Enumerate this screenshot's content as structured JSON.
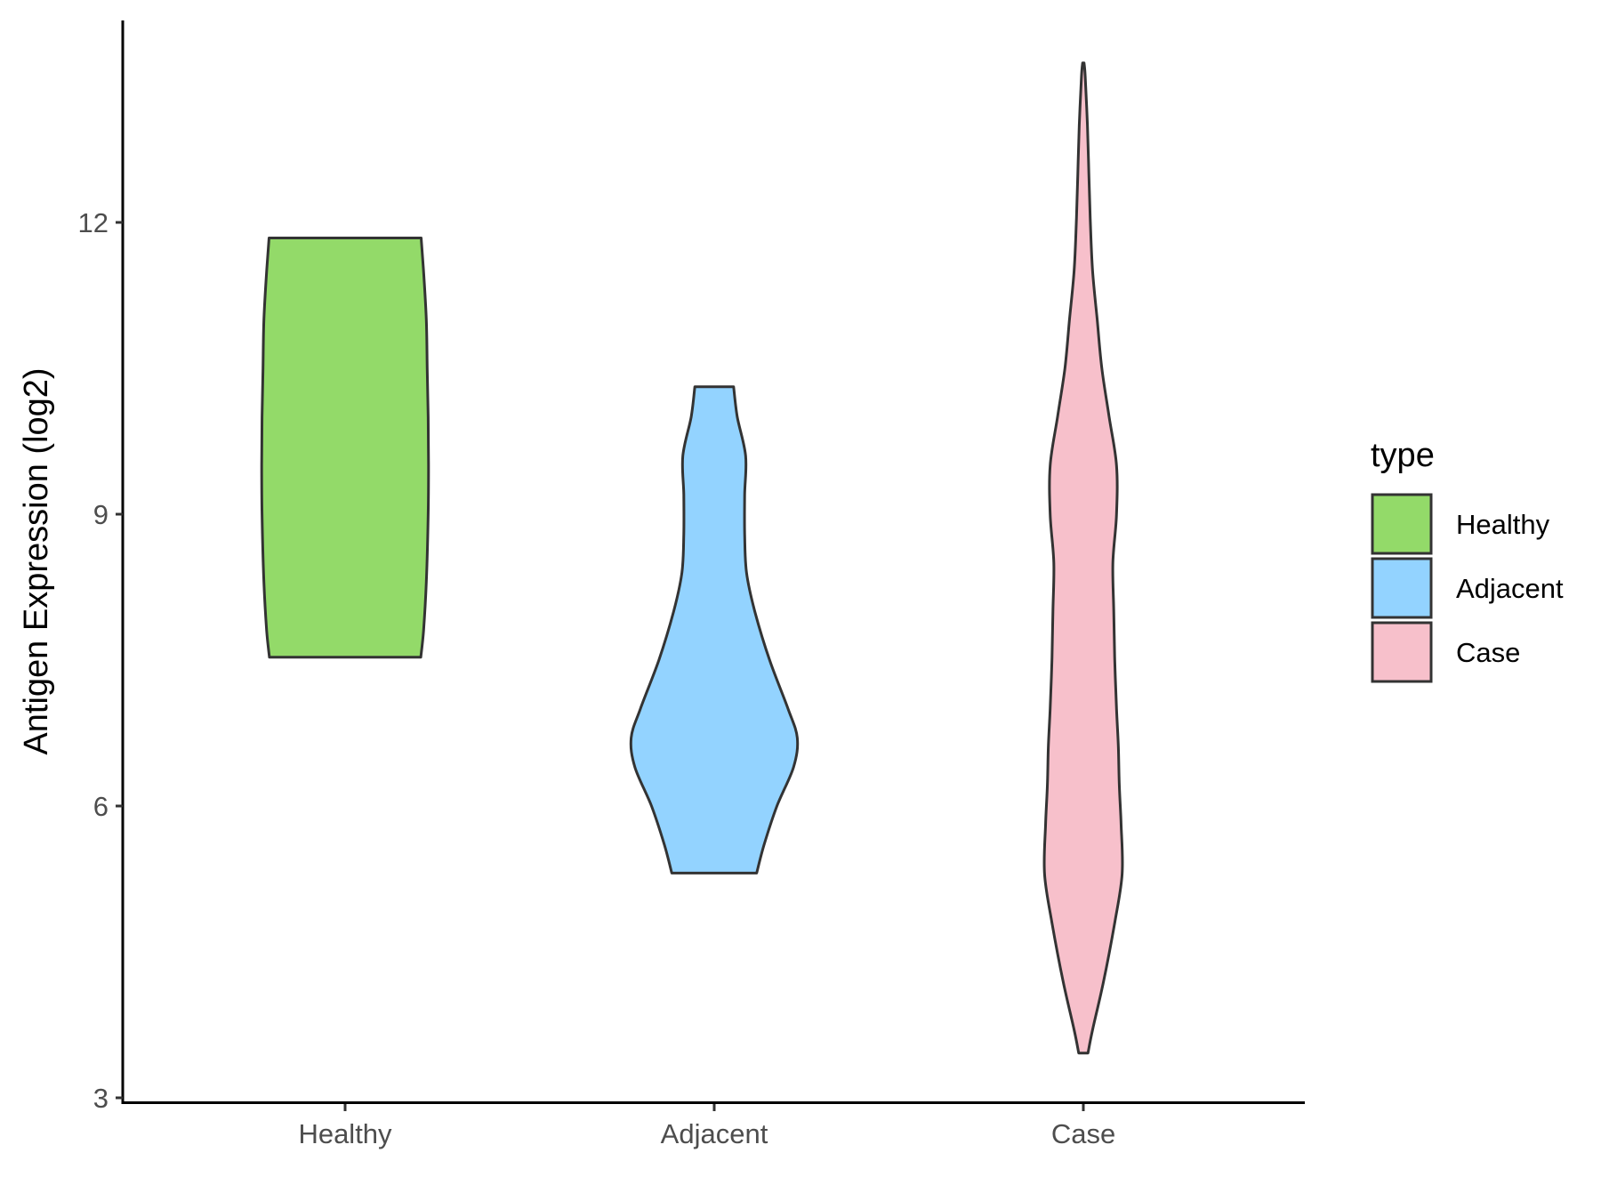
{
  "chart_data": {
    "type": "violin",
    "ylabel": "Antigen Expression (log2)",
    "xlabel": "",
    "ylim": [
      2.98,
      14.15
    ],
    "yticks": [
      3,
      6,
      9,
      12
    ],
    "categories": [
      "Healthy",
      "Adjacent",
      "Case"
    ],
    "legend": {
      "title": "type",
      "position": "right"
    },
    "grid": false,
    "series": [
      {
        "name": "Healthy",
        "color": "#93DA69",
        "profile": [
          [
            7.53,
            0.41
          ],
          [
            7.8,
            0.425
          ],
          [
            8.3,
            0.44
          ],
          [
            9.0,
            0.45
          ],
          [
            9.5,
            0.452
          ],
          [
            10.0,
            0.45
          ],
          [
            10.5,
            0.445
          ],
          [
            11.0,
            0.44
          ],
          [
            11.5,
            0.425
          ],
          [
            11.84,
            0.412
          ]
        ]
      },
      {
        "name": "Adjacent",
        "color": "#93D3FF",
        "profile": [
          [
            5.31,
            0.23
          ],
          [
            5.6,
            0.27
          ],
          [
            6.0,
            0.34
          ],
          [
            6.4,
            0.43
          ],
          [
            6.7,
            0.45
          ],
          [
            7.0,
            0.4
          ],
          [
            7.5,
            0.3
          ],
          [
            8.0,
            0.22
          ],
          [
            8.4,
            0.175
          ],
          [
            8.8,
            0.165
          ],
          [
            9.2,
            0.165
          ],
          [
            9.6,
            0.17
          ],
          [
            10.0,
            0.125
          ],
          [
            10.31,
            0.105
          ]
        ]
      },
      {
        "name": "Case",
        "color": "#F7C0CB",
        "profile": [
          [
            3.46,
            0.025
          ],
          [
            3.7,
            0.05
          ],
          [
            4.2,
            0.11
          ],
          [
            4.8,
            0.17
          ],
          [
            5.3,
            0.21
          ],
          [
            5.8,
            0.205
          ],
          [
            6.2,
            0.195
          ],
          [
            6.6,
            0.19
          ],
          [
            7.0,
            0.18
          ],
          [
            7.5,
            0.17
          ],
          [
            8.0,
            0.165
          ],
          [
            8.5,
            0.16
          ],
          [
            9.0,
            0.18
          ],
          [
            9.5,
            0.18
          ],
          [
            10.0,
            0.14
          ],
          [
            10.5,
            0.1
          ],
          [
            11.0,
            0.075
          ],
          [
            11.5,
            0.05
          ],
          [
            12.0,
            0.038
          ],
          [
            12.5,
            0.03
          ],
          [
            13.0,
            0.022
          ],
          [
            13.5,
            0.01
          ],
          [
            13.64,
            0.004
          ]
        ]
      }
    ]
  }
}
